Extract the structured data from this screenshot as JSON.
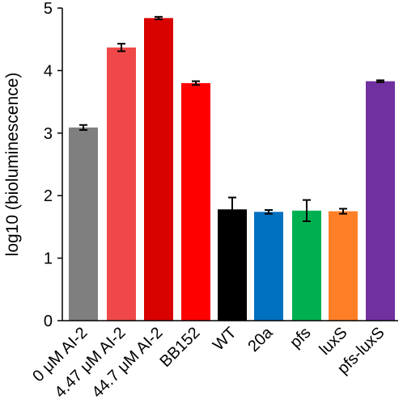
{
  "chart_data": {
    "type": "bar",
    "title": "",
    "xlabel": "",
    "ylabel": "log10 (bioluminescence)",
    "ylim": [
      0,
      5
    ],
    "yticks": [
      "0",
      "1",
      "2",
      "3",
      "4",
      "5"
    ],
    "grid": false,
    "categories": [
      "0 μM AI-2",
      "4.47 μM AI-2",
      "44.7 μM AI-2",
      "BB152",
      "WT",
      "20a",
      "pfs",
      "luxS",
      "pfs-luxS"
    ],
    "values": [
      3.09,
      4.37,
      4.84,
      3.8,
      1.78,
      1.74,
      1.76,
      1.75,
      3.83
    ],
    "errors": [
      0.04,
      0.06,
      0.02,
      0.03,
      0.19,
      0.03,
      0.17,
      0.04,
      0.015
    ],
    "colors": [
      "#7f7f7f",
      "#f04848",
      "#d90000",
      "#ff0000",
      "#000000",
      "#0070c0",
      "#00b050",
      "#ff7f27",
      "#7030a0"
    ]
  }
}
